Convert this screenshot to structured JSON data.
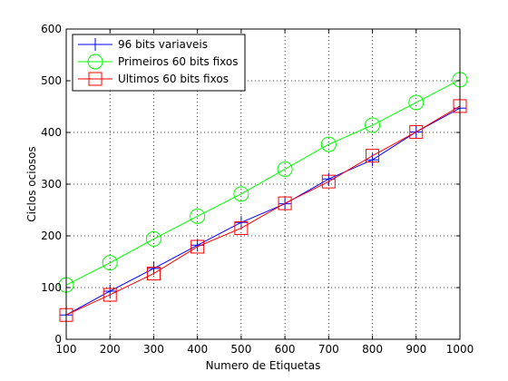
{
  "chart_data": {
    "type": "line",
    "title": "",
    "xlabel": "Numero de Etiquetas",
    "ylabel": "Ciclos ociosos",
    "xlim": [
      100,
      1000
    ],
    "ylim": [
      0,
      600
    ],
    "xticks": [
      100,
      200,
      300,
      400,
      500,
      600,
      700,
      800,
      900,
      1000
    ],
    "yticks": [
      0,
      100,
      200,
      300,
      400,
      500,
      600
    ],
    "grid": true,
    "legend_position": "top-left",
    "x": [
      100,
      200,
      300,
      400,
      500,
      600,
      700,
      800,
      900,
      1000
    ],
    "series": [
      {
        "name": "96 bits variaveis",
        "color": "#0000ff",
        "marker": "plus",
        "values": [
          47,
          93,
          137,
          182,
          226,
          262,
          310,
          347,
          401,
          447
        ]
      },
      {
        "name": "Primeiros 60 bits fixos",
        "color": "#00ff00",
        "marker": "circle",
        "values": [
          105,
          148,
          194,
          238,
          281,
          329,
          377,
          414,
          458,
          502
        ]
      },
      {
        "name": "Ultimos 60 bits fixos",
        "color": "#ff0000",
        "marker": "square",
        "values": [
          47,
          86,
          127,
          179,
          215,
          263,
          305,
          355,
          401,
          451
        ]
      }
    ]
  }
}
